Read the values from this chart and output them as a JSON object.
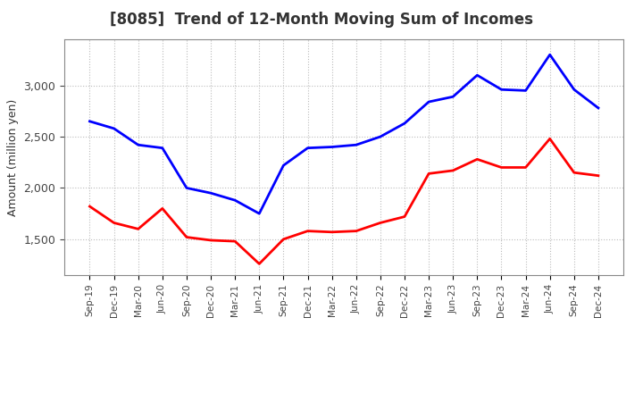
{
  "title": "[8085]  Trend of 12-Month Moving Sum of Incomes",
  "ylabel": "Amount (million yen)",
  "background_color": "#ffffff",
  "grid_color": "#bbbbbb",
  "x_labels": [
    "Sep-19",
    "Dec-19",
    "Mar-20",
    "Jun-20",
    "Sep-20",
    "Dec-20",
    "Mar-21",
    "Jun-21",
    "Sep-21",
    "Dec-21",
    "Mar-22",
    "Jun-22",
    "Sep-22",
    "Dec-22",
    "Mar-23",
    "Jun-23",
    "Sep-23",
    "Dec-23",
    "Mar-24",
    "Jun-24",
    "Sep-24",
    "Dec-24"
  ],
  "ordinary_income": [
    2650,
    2580,
    2420,
    2390,
    2000,
    1950,
    1880,
    1750,
    2220,
    2390,
    2400,
    2420,
    2500,
    2630,
    2840,
    2890,
    3100,
    2960,
    2950,
    3300,
    2960,
    2780
  ],
  "net_income": [
    1820,
    1660,
    1600,
    1800,
    1520,
    1490,
    1480,
    1260,
    1500,
    1580,
    1570,
    1580,
    1660,
    1720,
    2140,
    2170,
    2280,
    2200,
    2200,
    2480,
    2150,
    2120
  ],
  "ordinary_color": "#0000ff",
  "net_color": "#ff0000",
  "ylim_min": 1150,
  "ylim_max": 3450,
  "yticks": [
    1500,
    2000,
    2500,
    3000
  ],
  "title_color": "#333333",
  "title_fontsize": 12,
  "line_width": 2.0
}
